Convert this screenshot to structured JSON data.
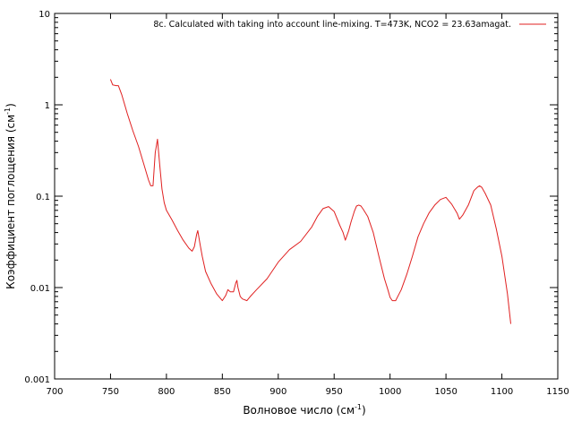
{
  "chart_data": {
    "type": "line",
    "xlabel": "Волновое число (см",
    "xlabel_sup": "-1",
    "xlabel_tail": ")",
    "ylabel": "Коэффициент поглощения (см",
    "ylabel_sup": "-1",
    "ylabel_tail": ")",
    "xlim": [
      700,
      1150
    ],
    "ylim": [
      0.001,
      10
    ],
    "yscale": "log",
    "grid": false,
    "legend_position": "top-right",
    "x_ticks": [
      700,
      750,
      800,
      850,
      900,
      950,
      1000,
      1050,
      1100,
      1150
    ],
    "x_tick_labels": [
      "700",
      "750",
      "800",
      "850",
      "900",
      "950",
      "1000",
      "1050",
      "1100",
      "1150"
    ],
    "y_ticks": [
      0.001,
      0.01,
      0.1,
      1,
      10
    ],
    "y_tick_labels": [
      "0.001",
      "0.01",
      "0.1",
      "1",
      "10"
    ],
    "series": [
      {
        "name": "8c. Calculated with taking into account line-mixing. T=473K, NCO2 = 23.63amagat.",
        "color": "#e02020",
        "x": [
          750,
          752,
          755,
          757,
          760,
          765,
          770,
          775,
          780,
          784,
          786,
          788,
          790,
          792,
          794,
          796,
          798,
          800,
          805,
          810,
          815,
          820,
          823,
          825,
          827,
          828,
          830,
          832,
          835,
          840,
          845,
          850,
          853,
          855,
          857,
          860,
          862,
          863,
          864,
          866,
          868,
          872,
          875,
          880,
          890,
          900,
          910,
          920,
          930,
          935,
          940,
          945,
          950,
          955,
          958,
          960,
          963,
          965,
          968,
          970,
          972,
          974,
          976,
          980,
          985,
          990,
          995,
          998,
          1000,
          1002,
          1005,
          1008,
          1010,
          1015,
          1020,
          1025,
          1030,
          1035,
          1040,
          1045,
          1050,
          1055,
          1060,
          1062,
          1065,
          1070,
          1075,
          1078,
          1080,
          1082,
          1085,
          1090,
          1095,
          1100,
          1105,
          1108
        ],
        "values": [
          1.9,
          1.65,
          1.62,
          1.62,
          1.3,
          0.8,
          0.52,
          0.35,
          0.22,
          0.15,
          0.13,
          0.13,
          0.3,
          0.42,
          0.22,
          0.12,
          0.085,
          0.07,
          0.055,
          0.042,
          0.033,
          0.027,
          0.025,
          0.028,
          0.038,
          0.042,
          0.03,
          0.022,
          0.015,
          0.011,
          0.0085,
          0.0072,
          0.0082,
          0.0095,
          0.009,
          0.009,
          0.0112,
          0.012,
          0.01,
          0.008,
          0.0075,
          0.0072,
          0.008,
          0.0093,
          0.0125,
          0.019,
          0.026,
          0.032,
          0.046,
          0.06,
          0.073,
          0.077,
          0.068,
          0.048,
          0.04,
          0.033,
          0.042,
          0.052,
          0.068,
          0.078,
          0.08,
          0.078,
          0.072,
          0.06,
          0.04,
          0.022,
          0.0125,
          0.0095,
          0.0078,
          0.0072,
          0.0072,
          0.0085,
          0.0095,
          0.014,
          0.022,
          0.036,
          0.05,
          0.066,
          0.08,
          0.092,
          0.097,
          0.082,
          0.065,
          0.056,
          0.062,
          0.08,
          0.115,
          0.125,
          0.13,
          0.125,
          0.108,
          0.08,
          0.044,
          0.022,
          0.0085,
          0.004
        ]
      }
    ]
  }
}
